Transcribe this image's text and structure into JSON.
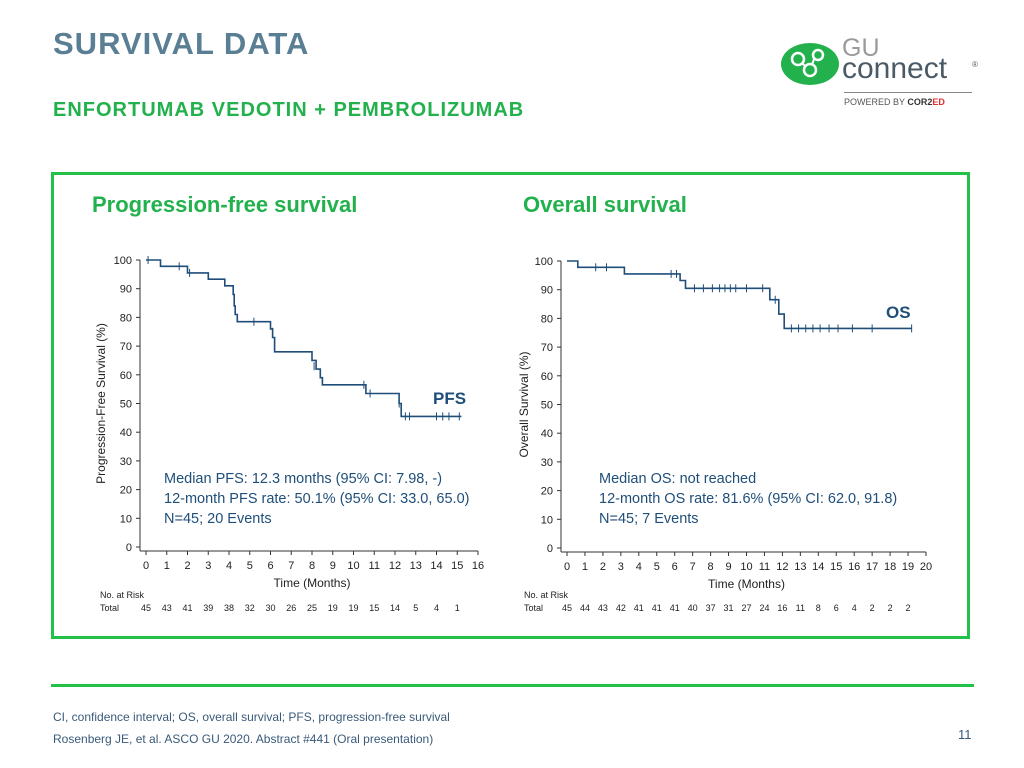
{
  "slide": {
    "title": "SURVIVAL DATA",
    "subtitle": "ENFORTUMAB VEDOTIN + PEMBROLIZUMAB",
    "page_number": "11"
  },
  "logo": {
    "line1": "GU",
    "line2": "connect",
    "registered": "®",
    "powered_prefix": "POWERED BY ",
    "powered_brand": "COR2",
    "powered_brand_suffix": "ED",
    "icon": "gu-connect-logo-mark",
    "color": "#22b14c"
  },
  "footnotes": {
    "abbreviations": "CI, confidence interval; OS, overall survival; PFS, progression-free survival",
    "reference": "Rosenberg JE, et al. ASCO GU 2020. Abstract #441 (Oral presentation)"
  },
  "colors": {
    "title": "#5a7f94",
    "accent_green": "#22b14c",
    "curve": "#1f4e79",
    "annotation": "#1f4e79"
  },
  "chart_data": [
    {
      "type": "line",
      "title": "Progression-free survival",
      "xlabel": "Time (Months)",
      "ylabel": "Progression-Free Survival (%)",
      "xlim": [
        0,
        16
      ],
      "ylim": [
        0,
        100
      ],
      "xticks": [
        "0",
        "1",
        "2",
        "3",
        "4",
        "5",
        "6",
        "7",
        "8",
        "9",
        "10",
        "11",
        "12",
        "13",
        "14",
        "15",
        "16"
      ],
      "yticks": [
        "0",
        "10",
        "20",
        "30",
        "40",
        "50",
        "60",
        "70",
        "80",
        "90",
        "100"
      ],
      "series": [
        {
          "name": "PFS",
          "step": [
            [
              0,
              100
            ],
            [
              0.7,
              100
            ],
            [
              0.7,
              97.8
            ],
            [
              2,
              97.8
            ],
            [
              2,
              95.5
            ],
            [
              3,
              95.5
            ],
            [
              3,
              93.3
            ],
            [
              3.8,
              93.3
            ],
            [
              3.8,
              91
            ],
            [
              4.2,
              91
            ],
            [
              4.2,
              88
            ],
            [
              4.25,
              88
            ],
            [
              4.25,
              84
            ],
            [
              4.3,
              84
            ],
            [
              4.3,
              81
            ],
            [
              4.4,
              81
            ],
            [
              4.4,
              78.5
            ],
            [
              6,
              78.5
            ],
            [
              6,
              76
            ],
            [
              6.1,
              76
            ],
            [
              6.1,
              73
            ],
            [
              6.2,
              73
            ],
            [
              6.2,
              68
            ],
            [
              8,
              68
            ],
            [
              8,
              65
            ],
            [
              8.2,
              65
            ],
            [
              8.2,
              62
            ],
            [
              8.4,
              62
            ],
            [
              8.4,
              59
            ],
            [
              8.5,
              59
            ],
            [
              8.5,
              56.5
            ],
            [
              10.6,
              56.5
            ],
            [
              10.6,
              53.5
            ],
            [
              12.2,
              53.5
            ],
            [
              12.2,
              50
            ],
            [
              12.3,
              50
            ],
            [
              12.3,
              45.5
            ],
            [
              15.2,
              45.5
            ]
          ],
          "censor": [
            [
              0.1,
              100
            ],
            [
              1.6,
              97.8
            ],
            [
              2.1,
              95.5
            ],
            [
              5.2,
              78.5
            ],
            [
              6.1,
              75
            ],
            [
              8.1,
              63
            ],
            [
              10.5,
              56.5
            ],
            [
              10.8,
              53.5
            ],
            [
              12.2,
              50
            ],
            [
              12.5,
              45.5
            ],
            [
              12.7,
              45.5
            ],
            [
              14,
              45.5
            ],
            [
              14.3,
              45.5
            ],
            [
              14.6,
              45.5
            ],
            [
              15.1,
              45.5
            ]
          ]
        }
      ],
      "series_label": "PFS",
      "annotation": [
        "Median PFS: 12.3 months (95% CI: 7.98, -)",
        "12-month PFS rate: 50.1% (95% CI: 33.0, 65.0)",
        "N=45; 20 Events"
      ],
      "risk_table": {
        "header": "No. at Risk",
        "row_label": "Total",
        "values": [
          "45",
          "43",
          "41",
          "39",
          "38",
          "32",
          "30",
          "26",
          "25",
          "19",
          "19",
          "15",
          "14",
          "5",
          "4",
          "1"
        ]
      }
    },
    {
      "type": "line",
      "title": "Overall survival",
      "xlabel": "Time (Months)",
      "ylabel": "Overall Survival (%)",
      "xlim": [
        0,
        20
      ],
      "ylim": [
        0,
        100
      ],
      "xticks": [
        "0",
        "1",
        "2",
        "3",
        "4",
        "5",
        "6",
        "7",
        "8",
        "9",
        "10",
        "11",
        "12",
        "13",
        "14",
        "15",
        "16",
        "17",
        "18",
        "19",
        "20"
      ],
      "yticks": [
        "0",
        "10",
        "20",
        "30",
        "40",
        "50",
        "60",
        "70",
        "80",
        "90",
        "100"
      ],
      "series": [
        {
          "name": "OS",
          "step": [
            [
              0,
              100
            ],
            [
              0.6,
              100
            ],
            [
              0.6,
              97.8
            ],
            [
              3.2,
              97.8
            ],
            [
              3.2,
              95.5
            ],
            [
              6.3,
              95.5
            ],
            [
              6.3,
              93.2
            ],
            [
              6.6,
              93.2
            ],
            [
              6.6,
              90.5
            ],
            [
              11.3,
              90.5
            ],
            [
              11.3,
              86.5
            ],
            [
              11.8,
              86.5
            ],
            [
              11.8,
              81.5
            ],
            [
              12.1,
              81.5
            ],
            [
              12.1,
              76.5
            ],
            [
              19.2,
              76.5
            ]
          ],
          "censor": [
            [
              1.6,
              97.8
            ],
            [
              2.2,
              97.8
            ],
            [
              5.8,
              95.5
            ],
            [
              6.1,
              95.5
            ],
            [
              7.1,
              90.5
            ],
            [
              7.6,
              90.5
            ],
            [
              8.1,
              90.5
            ],
            [
              8.5,
              90.5
            ],
            [
              8.8,
              90.5
            ],
            [
              9.1,
              90.5
            ],
            [
              9.4,
              90.5
            ],
            [
              10,
              90.5
            ],
            [
              10.9,
              90.5
            ],
            [
              11.6,
              86.5
            ],
            [
              12.5,
              76.5
            ],
            [
              12.9,
              76.5
            ],
            [
              13.3,
              76.5
            ],
            [
              13.7,
              76.5
            ],
            [
              14.1,
              76.5
            ],
            [
              14.6,
              76.5
            ],
            [
              15.1,
              76.5
            ],
            [
              15.9,
              76.5
            ],
            [
              17,
              76.5
            ],
            [
              19.2,
              76.5
            ]
          ]
        }
      ],
      "series_label": "OS",
      "annotation": [
        "Median OS: not reached",
        "12-month OS rate: 81.6% (95% CI: 62.0, 91.8)",
        "N=45; 7 Events"
      ],
      "risk_table": {
        "header": "No. at Risk",
        "row_label": "Total",
        "values": [
          "45",
          "44",
          "43",
          "42",
          "41",
          "41",
          "41",
          "40",
          "37",
          "31",
          "27",
          "24",
          "16",
          "11",
          "8",
          "6",
          "4",
          "2",
          "2",
          "2"
        ]
      }
    }
  ]
}
